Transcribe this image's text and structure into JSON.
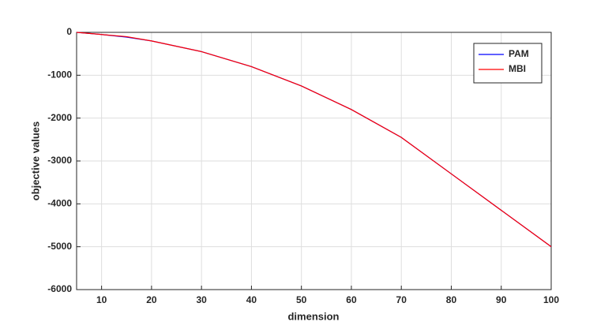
{
  "chart_data": {
    "type": "line",
    "xlabel": "dimension",
    "ylabel": "objective values",
    "x": [
      5,
      10,
      15,
      20,
      30,
      40,
      50,
      60,
      70,
      80,
      90,
      100
    ],
    "series": [
      {
        "name": "PAM",
        "color": "#0000ff",
        "values": [
          0,
          -50,
          -110,
          -200,
          -450,
          -800,
          -1250,
          -1800,
          -2450,
          -3300,
          -4150,
          -5000
        ]
      },
      {
        "name": "MBI",
        "color": "#ff0000",
        "values": [
          0,
          -50,
          -100,
          -200,
          -450,
          -800,
          -1250,
          -1800,
          -2450,
          -3300,
          -4150,
          -5000
        ]
      }
    ],
    "xlim": [
      5,
      100
    ],
    "xticks": [
      10,
      20,
      30,
      40,
      50,
      60,
      70,
      80,
      90,
      100
    ],
    "ylim": [
      -6000,
      0
    ],
    "yticks": [
      0,
      -1000,
      -2000,
      -3000,
      -4000,
      -5000,
      -6000
    ],
    "grid": true,
    "legend": "top-right"
  }
}
